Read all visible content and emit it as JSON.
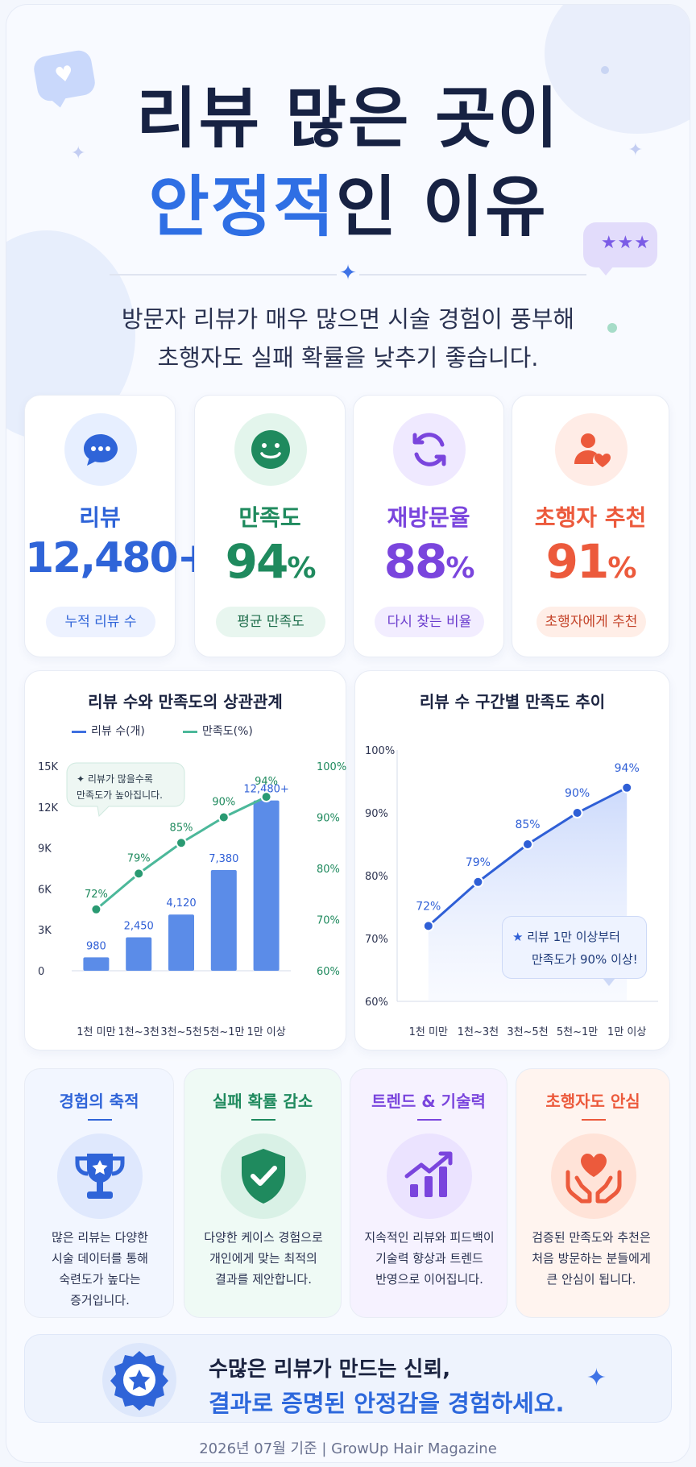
{
  "title": {
    "line1": "리뷰 많은 곳이",
    "line2_highlight": "안정적",
    "line2_rest": "인 이유"
  },
  "subtitle": {
    "line1": "방문자 리뷰가 매우 많으면 시술 경험이 풍부해",
    "line2": "초행자도 실패 확률을 낮추기 좋습니다."
  },
  "stats": [
    {
      "label": "리뷰",
      "value": "12,480+",
      "unit": "",
      "pill": "누적 리뷰 수",
      "color": "#2f64d8",
      "icon": "chat-bubble-icon"
    },
    {
      "label": "만족도",
      "value": "94",
      "unit": "%",
      "pill": "평균 만족도",
      "color": "#1f8a5e",
      "icon": "smile-icon"
    },
    {
      "label": "재방문율",
      "value": "88",
      "unit": "%",
      "pill": "다시 찾는 비율",
      "color": "#7a45dd",
      "icon": "refresh-icon"
    },
    {
      "label": "초행자 추천",
      "value": "91",
      "unit": "%",
      "pill": "초행자에게 추천",
      "color": "#ec5a3c",
      "icon": "user-heart-icon"
    }
  ],
  "chart_left": {
    "title": "리뷰 수와 만족도의 상관관계",
    "legend_bar": "리뷰 수(개)",
    "legend_line": "만족도(%)",
    "annotation_line1": "✦ 리뷰가 많을수록",
    "annotation_line2": "만족도가 높아집니다."
  },
  "chart_right": {
    "title": "리뷰 수 구간별 만족도 추이",
    "annotation_line1": "리뷰 1만 이상부터",
    "annotation_line2": "만족도가 90% 이상!"
  },
  "chart_data": [
    {
      "type": "bar",
      "title": "리뷰 수와 만족도의 상관관계",
      "categories": [
        "1천 미만",
        "1천~3천",
        "3천~5천",
        "5천~1만",
        "1만 이상"
      ],
      "series": [
        {
          "name": "리뷰 수(개)",
          "type": "bar",
          "axis": "left",
          "values": [
            980,
            2450,
            4120,
            7380,
            12480
          ],
          "labels": [
            "980",
            "2,450",
            "4,120",
            "7,380",
            "12,480+"
          ],
          "color": "#5b8ce8"
        },
        {
          "name": "만족도(%)",
          "type": "line",
          "axis": "right",
          "values": [
            72,
            79,
            85,
            90,
            94
          ],
          "labels": [
            "72%",
            "79%",
            "85%",
            "90%",
            "94%"
          ],
          "color": "#4cb89a"
        }
      ],
      "ylim_left": [
        0,
        15000
      ],
      "yticks_left": [
        "0",
        "3K",
        "6K",
        "9K",
        "12K",
        "15K"
      ],
      "ylim_right": [
        60,
        100
      ],
      "yticks_right": [
        "60%",
        "70%",
        "80%",
        "90%",
        "100%"
      ],
      "legend": "top-left",
      "grid": false
    },
    {
      "type": "area",
      "title": "리뷰 수 구간별 만족도 추이",
      "categories": [
        "1천 미만",
        "1천~3천",
        "3천~5천",
        "5천~1만",
        "1만 이상"
      ],
      "series": [
        {
          "name": "",
          "values": [
            72,
            79,
            85,
            90,
            94
          ],
          "labels": [
            "72%",
            "79%",
            "85%",
            "90%",
            "94%"
          ],
          "color": "#2f5fd6"
        }
      ],
      "ylim": [
        60,
        100
      ],
      "yticks": [
        "60%",
        "70%",
        "80%",
        "90%",
        "100%"
      ],
      "grid": false
    }
  ],
  "info_cards": [
    {
      "title": "경험의 축적",
      "text": [
        "많은 리뷰는 다양한",
        "시술 데이터를 통해",
        "숙련도가 높다는",
        "증거입니다."
      ],
      "color": "#2f64d8",
      "bg": "#f2f6ff",
      "icon": "trophy-icon"
    },
    {
      "title": "실패 확률 감소",
      "text": [
        "다양한 케이스 경험으로",
        "개인에게 맞는 최적의",
        "결과를 제안합니다."
      ],
      "color": "#1f8a5e",
      "bg": "#effaf5",
      "icon": "shield-check-icon"
    },
    {
      "title": "트렌드 & 기술력",
      "text": [
        "지속적인 리뷰와 피드백이",
        "기술력 향상과 트렌드",
        "반영으로 이어집니다."
      ],
      "color": "#7a45dd",
      "bg": "#f6f2ff",
      "icon": "growth-chart-icon"
    },
    {
      "title": "초행자도 안심",
      "text": [
        "검증된 만족도와 추천은",
        "처음 방문하는 분들에게",
        "큰 안심이 됩니다."
      ],
      "color": "#ec5a3c",
      "bg": "#fff4ef",
      "icon": "hands-heart-icon"
    }
  ],
  "banner": {
    "line1": "수많은 리뷰가 만드는 신뢰,",
    "line2": "결과로 증명된 안정감을 경험하세요."
  },
  "footer": "2026년 07월 기준  |  GrowUp Hair Magazine"
}
